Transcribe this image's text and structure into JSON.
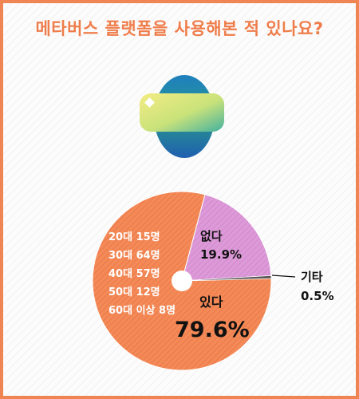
{
  "title": "메타버스 플랫폼을 사용해본 적 있나요?",
  "demographics": [
    "20대 15명",
    "30대 64명",
    "40대 57명",
    "50대 12명",
    "60대 이상 8명"
  ],
  "colors": {
    "accent": "#ef7d4b",
    "border": "#f08554",
    "slice_yes": "#f38a58",
    "slice_no": "#dd9ad8",
    "slice_other": "#555555"
  },
  "icon": "metaverse-headset-icon",
  "chart_data": {
    "type": "pie",
    "title": "메타버스 플랫폼을 사용해본 적 있나요?",
    "slices": [
      {
        "label": "있다",
        "percent_label": "79.6%",
        "value": 79.6
      },
      {
        "label": "없다",
        "percent_label": "19.9%",
        "value": 19.9
      },
      {
        "label": "기타",
        "percent_label": "0.5%",
        "value": 0.5
      }
    ]
  }
}
